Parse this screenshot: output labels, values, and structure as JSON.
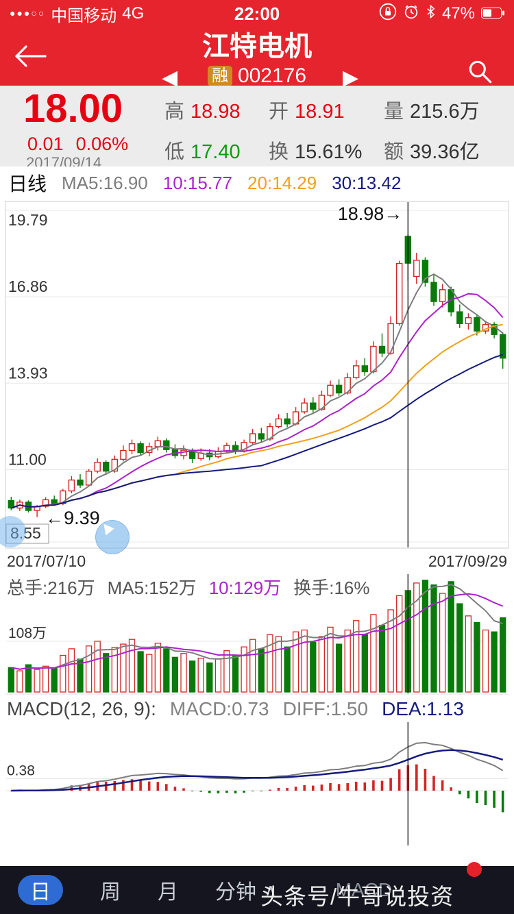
{
  "status_bar": {
    "signal": "●●●○○",
    "carrier": "中国移动",
    "network": "4G",
    "time": "22:00",
    "battery": "47%"
  },
  "icons": {
    "prev": "◀",
    "next": "▶",
    "chevron_up": "∧"
  },
  "nav": {
    "title": "江特电机",
    "badge": "融",
    "code": "002176"
  },
  "quote": {
    "price": "18.00",
    "change": "0.01",
    "change_pct": "0.06%",
    "date": "2017/09/14",
    "fields": [
      {
        "label": "高",
        "value": "18.98",
        "color": "red"
      },
      {
        "label": "开",
        "value": "18.91",
        "color": "red"
      },
      {
        "label": "量",
        "value": "215.6万",
        "color": "dark"
      },
      {
        "label": "低",
        "value": "17.40",
        "color": "green"
      },
      {
        "label": "换",
        "value": "15.61%",
        "color": "dark"
      },
      {
        "label": "额",
        "value": "39.36亿",
        "color": "dark"
      }
    ]
  },
  "legend_main": {
    "period": "日线",
    "ma5": "MA5:16.90",
    "ma10": "10:15.77",
    "ma20": "20:14.29",
    "ma30": "30:13.42"
  },
  "volume_legend": {
    "total": "总手:216万",
    "ma5": "MA5:152万",
    "ma10": "10:129万",
    "turnover": "换手:16%"
  },
  "macd_legend": {
    "title": "MACD(12, 26, 9):",
    "macd": "MACD:0.73",
    "diff": "DIFF:1.50",
    "dea": "DEA:1.13"
  },
  "tabbar": {
    "items": [
      "日",
      "周",
      "月",
      "分钟"
    ],
    "extra": "MACD",
    "watermark": "头条号/牛哥说投资"
  },
  "colors": {
    "header_red": "#e6242d",
    "price_red": "#e60012",
    "up_red": "#d42525",
    "down_green": "#0a7a0a",
    "quote_green": "#0e9a0e",
    "ma5": "#7d7d7d",
    "ma10": "#aa22cc",
    "ma20": "#f3a018",
    "ma30": "#141a7e",
    "dea_blue": "#141a7e",
    "badge_orange": "#d08a1e",
    "tab_blue": "#2e6bd2",
    "grid_gray": "#e8e8e8"
  },
  "chart_data": {
    "type": "candlestick+volume+macd",
    "title": "江特电机 002176 日线",
    "axis": {
      "x_left": "2017/07/10",
      "x_right": "2017/09/29"
    },
    "crosshair_index": 46,
    "price": {
      "ylim": [
        8.55,
        19.79
      ],
      "gridline_values": [
        19.79,
        16.86,
        13.93,
        11.0,
        8.55
      ],
      "gridline_labels": [
        "19.79",
        "16.86",
        "13.93",
        "11.00",
        "8.55"
      ],
      "high_annotation": {
        "index": 46,
        "price": 18.98,
        "label": "18.98→"
      },
      "low_annotation": {
        "index": 3,
        "price": 9.39,
        "label": "←9.39"
      },
      "candles": [
        [
          9.95,
          10.08,
          9.62,
          9.7
        ],
        [
          9.7,
          9.98,
          9.6,
          9.9
        ],
        [
          9.9,
          9.96,
          9.55,
          9.62
        ],
        [
          9.62,
          9.8,
          9.39,
          9.76
        ],
        [
          9.76,
          10.06,
          9.7,
          9.98
        ],
        [
          9.98,
          10.12,
          9.78,
          9.85
        ],
        [
          9.85,
          10.35,
          9.8,
          10.28
        ],
        [
          10.28,
          10.78,
          10.2,
          10.65
        ],
        [
          10.65,
          10.85,
          10.38,
          10.48
        ],
        [
          10.48,
          11.02,
          10.42,
          10.95
        ],
        [
          10.95,
          11.38,
          10.88,
          11.25
        ],
        [
          11.25,
          11.32,
          10.82,
          10.95
        ],
        [
          10.95,
          11.48,
          10.9,
          11.35
        ],
        [
          11.35,
          11.82,
          11.28,
          11.65
        ],
        [
          11.65,
          12.02,
          11.52,
          11.88
        ],
        [
          11.88,
          11.96,
          11.48,
          11.58
        ],
        [
          11.58,
          11.92,
          11.45,
          11.78
        ],
        [
          11.78,
          12.12,
          11.65,
          11.98
        ],
        [
          11.98,
          12.06,
          11.58,
          11.68
        ],
        [
          11.68,
          11.86,
          11.38,
          11.48
        ],
        [
          11.48,
          11.82,
          11.35,
          11.66
        ],
        [
          11.66,
          11.72,
          11.22,
          11.38
        ],
        [
          11.38,
          11.72,
          11.3,
          11.56
        ],
        [
          11.56,
          11.7,
          11.32,
          11.44
        ],
        [
          11.44,
          11.76,
          11.38,
          11.62
        ],
        [
          11.62,
          11.92,
          11.55,
          11.82
        ],
        [
          11.82,
          11.96,
          11.52,
          11.64
        ],
        [
          11.64,
          12.02,
          11.58,
          11.92
        ],
        [
          11.92,
          12.38,
          11.86,
          12.22
        ],
        [
          12.22,
          12.42,
          11.94,
          12.04
        ],
        [
          12.04,
          12.58,
          11.98,
          12.46
        ],
        [
          12.46,
          12.88,
          12.4,
          12.72
        ],
        [
          12.72,
          12.92,
          12.44,
          12.55
        ],
        [
          12.55,
          13.12,
          12.5,
          12.96
        ],
        [
          12.96,
          13.42,
          12.9,
          13.26
        ],
        [
          13.26,
          13.46,
          12.94,
          13.05
        ],
        [
          13.05,
          13.68,
          13.0,
          13.52
        ],
        [
          13.52,
          14.02,
          13.46,
          13.86
        ],
        [
          13.86,
          14.06,
          13.5,
          13.6
        ],
        [
          13.6,
          14.28,
          13.55,
          14.12
        ],
        [
          14.12,
          14.72,
          14.06,
          14.52
        ],
        [
          14.52,
          14.78,
          14.18,
          14.32
        ],
        [
          14.32,
          15.35,
          14.26,
          15.18
        ],
        [
          15.18,
          15.62,
          14.82,
          14.95
        ],
        [
          14.95,
          16.2,
          14.9,
          15.95
        ],
        [
          15.95,
          18.08,
          15.88,
          17.99
        ],
        [
          18.91,
          18.98,
          17.4,
          18.0
        ],
        [
          17.55,
          18.35,
          17.3,
          18.1
        ],
        [
          18.1,
          18.2,
          17.2,
          17.35
        ],
        [
          17.35,
          17.6,
          16.55,
          16.7
        ],
        [
          16.7,
          17.3,
          16.5,
          17.1
        ],
        [
          17.1,
          17.2,
          16.2,
          16.35
        ],
        [
          16.35,
          16.6,
          15.8,
          15.95
        ],
        [
          15.95,
          16.3,
          15.75,
          16.15
        ],
        [
          16.15,
          16.25,
          15.55,
          15.7
        ],
        [
          15.7,
          16.05,
          15.6,
          15.92
        ],
        [
          15.92,
          16.0,
          15.45,
          15.58
        ],
        [
          15.58,
          15.65,
          14.42,
          14.78
        ]
      ]
    },
    "volume": {
      "unit": "万",
      "ylim": [
        0,
        245
      ],
      "grid_value": 108,
      "grid_label": "108万",
      "values": [
        52,
        45,
        58,
        48,
        55,
        50,
        78,
        92,
        70,
        98,
        108,
        82,
        95,
        102,
        112,
        86,
        80,
        104,
        92,
        74,
        82,
        66,
        72,
        62,
        70,
        88,
        76,
        96,
        112,
        92,
        122,
        118,
        96,
        128,
        132,
        106,
        118,
        138,
        102,
        132,
        152,
        122,
        165,
        142,
        175,
        205,
        216,
        232,
        238,
        228,
        210,
        235,
        188,
        162,
        148,
        132,
        128,
        158
      ]
    },
    "macd": {
      "params": [
        12,
        26,
        9
      ],
      "grid_value": 0.38,
      "grid_label": "0.38"
    }
  }
}
